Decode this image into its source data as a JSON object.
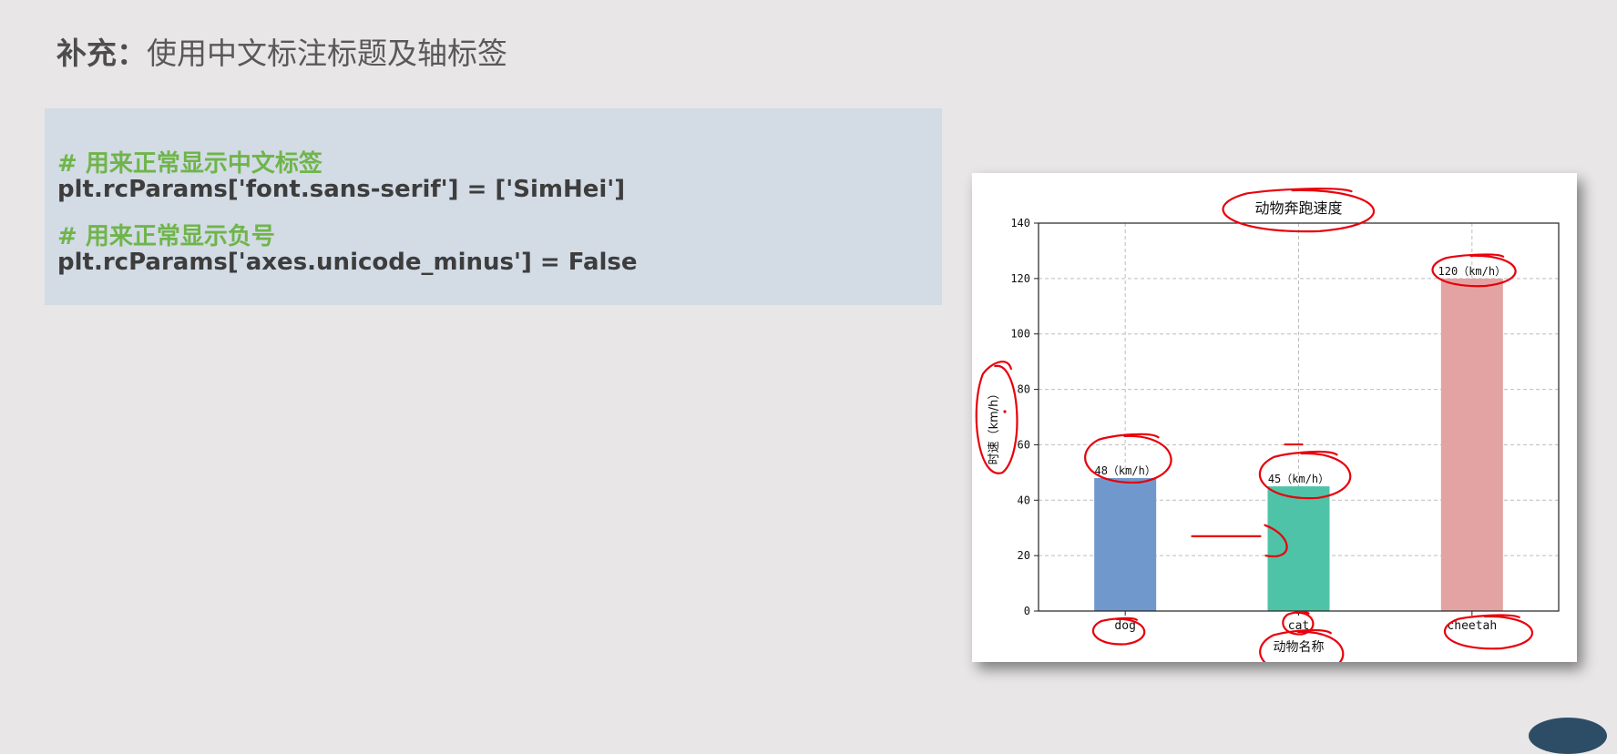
{
  "slide": {
    "title_strong": "补充",
    "title_colon": "：",
    "title_rest": "使用中文标注标题及轴标签"
  },
  "code": {
    "lines": [
      {
        "kind": "comment",
        "text": "# 用来正常显示中文标签"
      },
      {
        "kind": "code",
        "text": "plt.rcParams['font.sans-serif'] = ['SimHei']"
      },
      {
        "kind": "comment",
        "text": "# 用来正常显示负号"
      },
      {
        "kind": "code",
        "text": "plt.rcParams['axes.unicode_minus'] = False"
      }
    ]
  },
  "chart_data": {
    "type": "bar",
    "title": "动物奔跑速度",
    "xlabel": "动物名称",
    "ylabel": "时速（km/h）",
    "categories": [
      "dog",
      "cat",
      "cheetah"
    ],
    "values": [
      48,
      45,
      120
    ],
    "bar_labels": [
      "48（km/h）",
      "45（km/h）",
      "120（km/h）"
    ],
    "colors": [
      "#7098cc",
      "#4fc3a7",
      "#e3a3a3"
    ],
    "ylim": [
      0,
      140
    ],
    "yticks": [
      0,
      20,
      40,
      60,
      80,
      100,
      120,
      140
    ],
    "grid": true,
    "annotation_color": "#e8000b"
  }
}
